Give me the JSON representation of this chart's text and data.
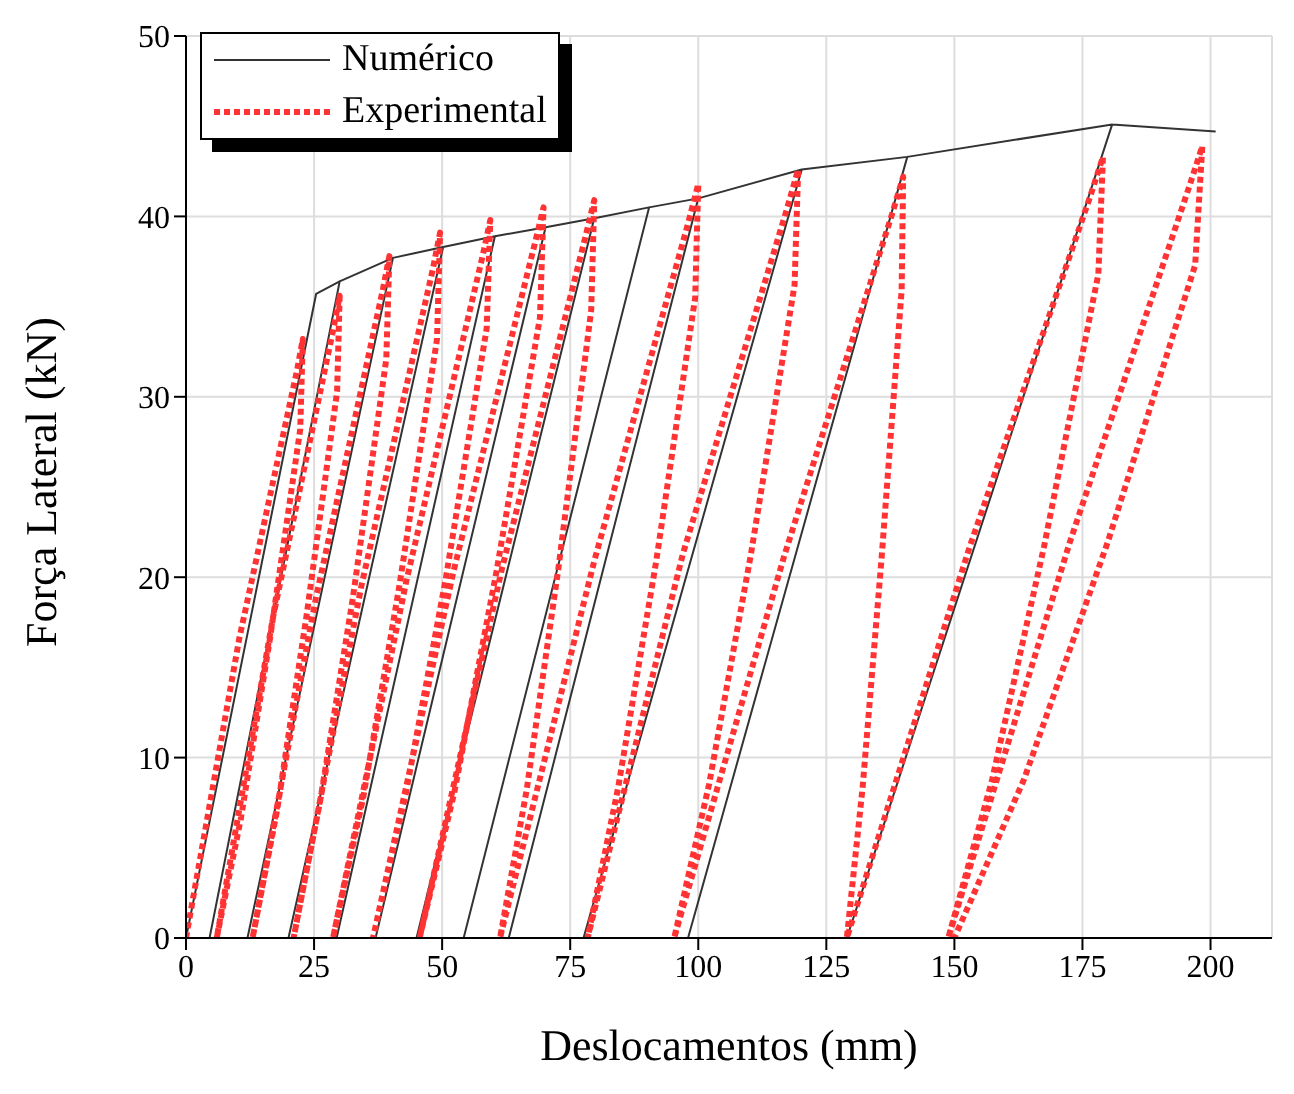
{
  "chart_data": {
    "type": "line",
    "xlabel": "Deslocamentos (mm)",
    "ylabel": "Força Lateral (kN)",
    "xlim": [
      0,
      212
    ],
    "ylim": [
      0,
      50
    ],
    "xticks": [
      0,
      25,
      50,
      75,
      100,
      125,
      150,
      175,
      200
    ],
    "yticks": [
      0,
      10,
      20,
      30,
      40,
      50
    ],
    "grid": true,
    "legend": "top left",
    "marker": "none",
    "series": [
      {
        "name": "Numérico",
        "color": "#333333",
        "line_style": "solid",
        "x": [
          0,
          25.4,
          30,
          4.6,
          30,
          40.4,
          12,
          40.4,
          50.2,
          20,
          50.2,
          60.3,
          29.4,
          60.3,
          70.2,
          37,
          70.2,
          79.7,
          45,
          79.7,
          90.4,
          54.2,
          90.4,
          100,
          63,
          100,
          120.2,
          77.6,
          120.2,
          140.8,
          98,
          140.8,
          180.8,
          129,
          180.8,
          201
        ],
        "values": [
          0,
          35.7,
          36.4,
          0,
          36.4,
          37.7,
          0,
          37.7,
          38.3,
          0,
          38.3,
          38.9,
          0,
          38.9,
          39.4,
          0,
          39.4,
          39.9,
          0,
          39.9,
          40.5,
          0,
          40.5,
          41,
          0,
          41,
          42.6,
          0,
          42.6,
          43.3,
          0,
          43.3,
          45.1,
          0,
          45.1,
          44.7
        ]
      },
      {
        "name": "Experimental",
        "color": "#ff3333",
        "line_style": "dotted",
        "x": [
          0,
          10.4,
          21.7,
          22.8,
          22.3,
          16.4,
          10.7,
          6,
          17,
          28.8,
          30,
          29.5,
          23.5,
          17.8,
          13,
          25.4,
          38.4,
          39.7,
          39.1,
          32.6,
          26.2,
          21,
          34.3,
          48.2,
          49.6,
          49,
          41.7,
          34.6,
          28.7,
          43.1,
          57.9,
          59.4,
          58.7,
          50.7,
          42.9,
          36.5,
          52.2,
          68.1,
          69.8,
          69.1,
          60.6,
          52.4,
          45.6,
          61.7,
          78,
          79.7,
          79.1,
          72.7,
          66.5,
          61.3,
          79.7,
          98.1,
          100,
          99.4,
          91.8,
          84.4,
          78.4,
          97,
          117.4,
          119.5,
          118.8,
          110.3,
          102.1,
          95.3,
          116.7,
          137.8,
          140,
          139.7,
          135.8,
          132.1,
          129,
          153,
          176.5,
          179,
          178.1,
          167.5,
          157.3,
          148.8,
          172.6,
          195.9,
          198.4,
          197,
          180,
          163.6,
          150
        ],
        "values": [
          0,
          16.6,
          31.5,
          33.2,
          28.2,
          16.6,
          6.6,
          0,
          17.8,
          33.8,
          35.6,
          30.3,
          17.8,
          7.1,
          0,
          18.9,
          35.9,
          37.8,
          32.1,
          18.9,
          7.6,
          0,
          19.6,
          37.1,
          39.1,
          33.2,
          19.6,
          7.8,
          0,
          19.9,
          37.8,
          39.8,
          33.8,
          19.9,
          8,
          0,
          20.3,
          38.5,
          40.5,
          34.4,
          20.3,
          8.1,
          0,
          20.5,
          38.9,
          40.9,
          34.8,
          20.5,
          8.2,
          0,
          20.9,
          39.7,
          41.8,
          35.5,
          20.9,
          8.4,
          0,
          21.3,
          40.5,
          42.6,
          36.2,
          21.3,
          8.5,
          0,
          21.1,
          40.1,
          42.2,
          35.9,
          21.1,
          8.4,
          0,
          21.7,
          41.1,
          43.3,
          36.8,
          21.7,
          8.7,
          0,
          22,
          41.7,
          43.9,
          37.3,
          22,
          8.8,
          0
        ]
      }
    ]
  }
}
